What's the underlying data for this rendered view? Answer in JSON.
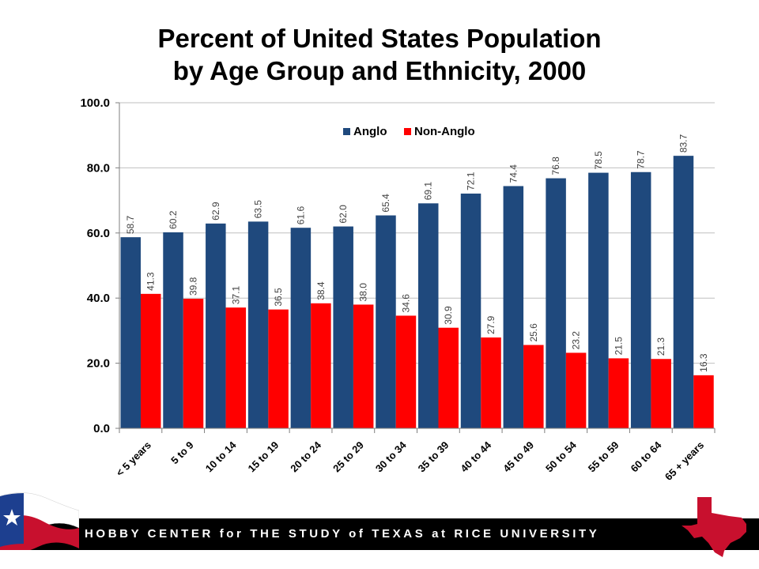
{
  "chart_data": {
    "type": "bar",
    "title_lines": [
      "Percent of United States Population",
      "by Age Group and Ethnicity, 2000"
    ],
    "categories": [
      "< 5 years",
      "5 to 9",
      "10 to 14",
      "15 to 19",
      "20 to 24",
      "25 to 29",
      "30 to 34",
      "35 to 39",
      "40 to 44",
      "45 to 49",
      "50 to 54",
      "55 to 59",
      "60 to 64",
      "65 + years"
    ],
    "series": [
      {
        "name": "Anglo",
        "color": "#1F497D",
        "values": [
          58.7,
          60.2,
          62.9,
          63.5,
          61.6,
          62.0,
          65.4,
          69.1,
          72.1,
          74.4,
          76.8,
          78.5,
          78.7,
          83.7
        ]
      },
      {
        "name": "Non-Anglo",
        "color": "#FF0000",
        "values": [
          41.3,
          39.8,
          37.1,
          36.5,
          38.4,
          38.0,
          34.6,
          30.9,
          27.9,
          25.6,
          23.2,
          21.5,
          21.3,
          16.3
        ]
      }
    ],
    "yticks": [
      "0.0",
      "20.0",
      "40.0",
      "60.0",
      "80.0",
      "100.0"
    ],
    "ylim": [
      0,
      100
    ],
    "grid": true,
    "legend_position": "top-center",
    "xlabel": "",
    "ylabel": ""
  },
  "footer": {
    "text": "HOBBY CENTER for THE STUDY of TEXAS at RICE UNIVERSITY"
  },
  "icons": {
    "flag": "texas-flag-icon",
    "state": "texas-map-icon"
  }
}
